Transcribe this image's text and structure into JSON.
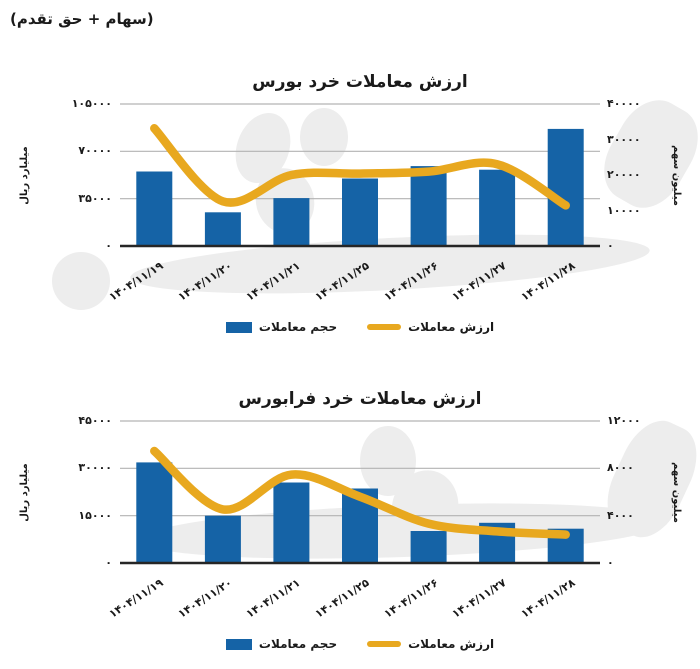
{
  "page": {
    "header_note": "(سهام + حق تقدم)"
  },
  "colors": {
    "bar": "#1563A6",
    "line": "#E8A81F",
    "gridline": "#b3b3b3",
    "axis_line": "#262626",
    "text": "#1a1a1a",
    "watermark": "#ededed"
  },
  "legend": {
    "volume_label": "حجم معاملات",
    "value_label": "ارزش معاملات"
  },
  "chart_data": [
    {
      "type": "bar+line",
      "title": "ارزش معاملات خرد بورس",
      "grid": true,
      "legend_position": "bottom",
      "categories": [
        "۱۴۰۴/۱۱/۱۹",
        "۱۴۰۴/۱۱/۲۰",
        "۱۴۰۴/۱۱/۲۱",
        "۱۴۰۴/۱۱/۲۵",
        "۱۴۰۴/۱۱/۲۶",
        "۱۴۰۴/۱۱/۲۷",
        "۱۴۰۴/۱۱/۲۸"
      ],
      "series": [
        {
          "name": "حجم معاملات",
          "type": "bar",
          "axis": "right",
          "values": [
            21000,
            9500,
            13500,
            19000,
            22500,
            21500,
            33000
          ]
        },
        {
          "name": "ارزش معاملات",
          "type": "line",
          "axis": "left",
          "values": [
            87000,
            33000,
            52500,
            53500,
            55000,
            60500,
            30000
          ]
        }
      ],
      "left_axis": {
        "title": "میلیارد ریال",
        "max": 105000,
        "tick_values": [
          105000,
          70000,
          35000,
          0
        ],
        "tick_labels": [
          "۱۰۵۰۰۰",
          "۷۰۰۰۰",
          "۳۵۰۰۰",
          "۰"
        ]
      },
      "right_axis": {
        "title": "میلیون سهم",
        "max": 40000,
        "tick_values": [
          40000,
          30000,
          20000,
          10000,
          0
        ],
        "tick_labels": [
          "۴۰۰۰۰",
          "۳۰۰۰۰",
          "۲۰۰۰۰",
          "۱۰۰۰۰",
          "۰"
        ]
      }
    },
    {
      "type": "bar+line",
      "title": "ارزش معاملات خرد فرابورس",
      "grid": true,
      "legend_position": "bottom",
      "categories": [
        "۱۴۰۴/۱۱/۱۹",
        "۱۴۰۴/۱۱/۲۰",
        "۱۴۰۴/۱۱/۲۱",
        "۱۴۰۴/۱۱/۲۵",
        "۱۴۰۴/۱۱/۲۶",
        "۱۴۰۴/۱۱/۲۷",
        "۱۴۰۴/۱۱/۲۸"
      ],
      "series": [
        {
          "name": "حجم معاملات",
          "type": "bar",
          "axis": "right",
          "values": [
            8500,
            4000,
            6800,
            6300,
            2700,
            3400,
            2900
          ]
        },
        {
          "name": "ارزش معاملات",
          "type": "line",
          "axis": "left",
          "values": [
            35500,
            17000,
            28000,
            21000,
            12500,
            10000,
            9000
          ]
        }
      ],
      "left_axis": {
        "title": "میلیارد ریال",
        "max": 45000,
        "tick_values": [
          45000,
          30000,
          15000,
          0
        ],
        "tick_labels": [
          "۴۵۰۰۰",
          "۳۰۰۰۰",
          "۱۵۰۰۰",
          "۰"
        ]
      },
      "right_axis": {
        "title": "میلیون سهم",
        "max": 12000,
        "tick_values": [
          12000,
          8000,
          4000,
          0
        ],
        "tick_labels": [
          "۱۲۰۰۰",
          "۸۰۰۰",
          "۴۰۰۰",
          "۰"
        ]
      }
    }
  ]
}
